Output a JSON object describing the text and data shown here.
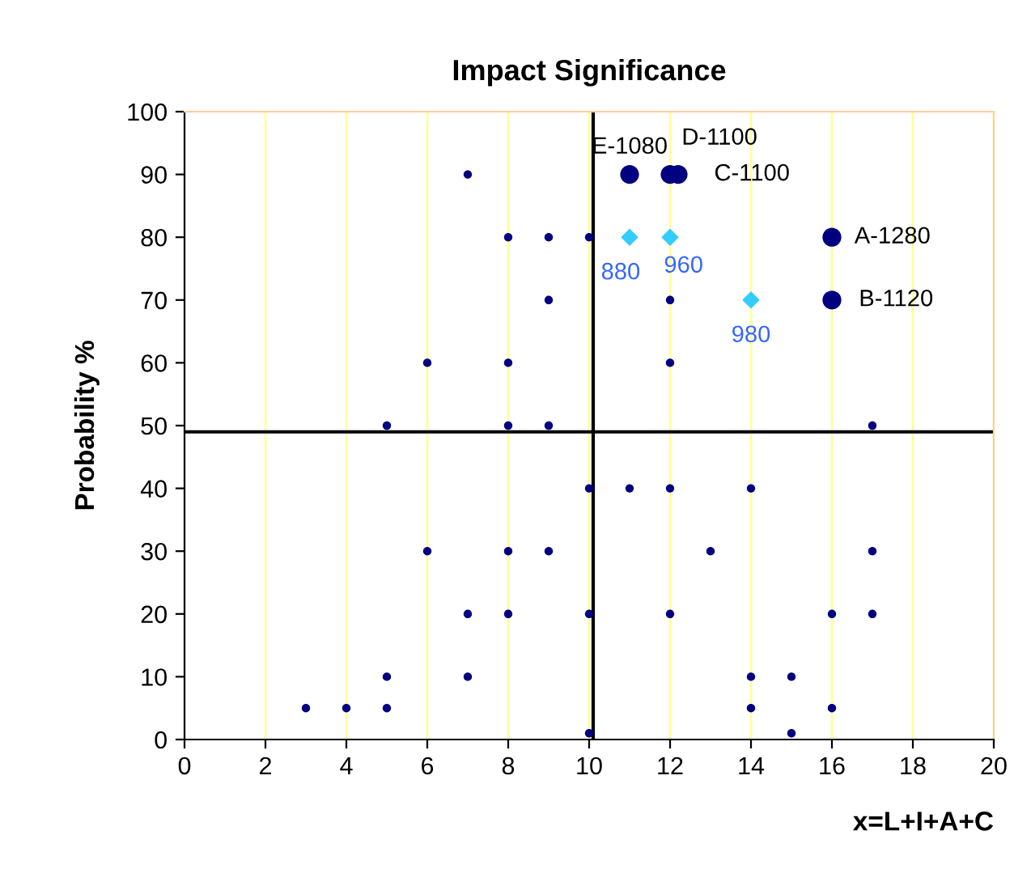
{
  "chart_data": {
    "type": "scatter",
    "title": "Impact Significance",
    "xlabel": "x=L+I+A+C",
    "ylabel": "Probability %",
    "xlim": [
      0,
      20
    ],
    "xticks": [
      0,
      2,
      4,
      6,
      8,
      10,
      12,
      14,
      16,
      18,
      20
    ],
    "ylim": [
      0,
      100
    ],
    "yticks": [
      0,
      10,
      20,
      30,
      40,
      50,
      60,
      70,
      80,
      90,
      100
    ],
    "grid": "x",
    "annotations": [
      {
        "text": "880",
        "x": 11,
        "y": 80
      },
      {
        "text": "960",
        "x": 12,
        "y": 80
      },
      {
        "text": "980",
        "x": 14,
        "y": 70
      }
    ],
    "marker": "circle",
    "ref_lines": [
      {
        "axis": "x",
        "value": 10.1,
        "color": "#000000"
      },
      {
        "axis": "y",
        "value": 49,
        "color": "#000000"
      }
    ],
    "series": [
      {
        "color": "#000080",
        "x": [
          7,
          8,
          9,
          10,
          9,
          6,
          8,
          5,
          8,
          9,
          12,
          12,
          17,
          10,
          11,
          12,
          14,
          6,
          8,
          9,
          13,
          17,
          7,
          8,
          10,
          12,
          16,
          17,
          5,
          7,
          14,
          15,
          3,
          4,
          5,
          14,
          16,
          10,
          15
        ],
        "values": [
          90,
          80,
          80,
          80,
          70,
          60,
          60,
          50,
          50,
          50,
          70,
          60,
          50,
          40,
          40,
          40,
          40,
          30,
          30,
          30,
          30,
          30,
          20,
          20,
          20,
          20,
          20,
          20,
          10,
          10,
          10,
          10,
          5,
          5,
          5,
          5,
          5,
          1,
          1
        ]
      },
      {
        "color": "#33ccff",
        "marker": "diamond",
        "x": [
          11,
          12,
          14
        ],
        "values": [
          80,
          80,
          70
        ]
      },
      {
        "color": "#000080",
        "x": [
          11,
          12,
          12.2,
          16,
          16
        ],
        "values": [
          90,
          90,
          90,
          80,
          70
        ],
        "value_labels": [
          "E-1080",
          "D-1100",
          "C-1100",
          "A-1280",
          "B-1120"
        ]
      }
    ]
  }
}
